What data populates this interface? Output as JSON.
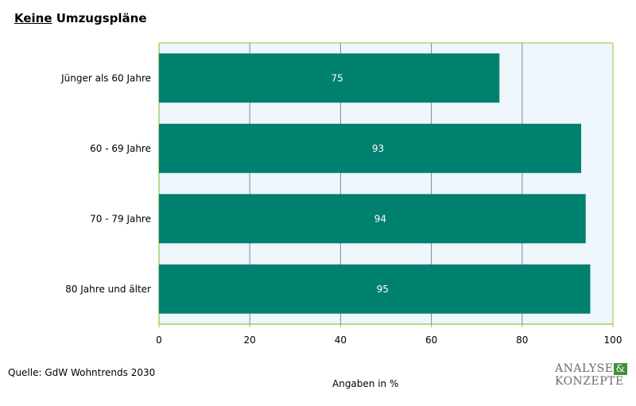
{
  "title": {
    "underlined": "Keine",
    "rest": " Umzugspläne"
  },
  "source": "Quelle: GdW Wohntrends 2030",
  "unit_label": "Angaben in %",
  "logo": {
    "line1": "ANALYSE",
    "amp": "&",
    "line2": "KONZEPTE"
  },
  "colors": {
    "bar": "#00806f",
    "plot_bg": "#eef5fb",
    "grid": "#7f8a94",
    "axis": "#8dc63f",
    "label": "#ffffff"
  },
  "chart_data": {
    "type": "bar",
    "orientation": "horizontal",
    "categories": [
      "Jünger als 60 Jahre",
      "60 - 69 Jahre",
      "70 - 79 Jahre",
      "80 Jahre und älter"
    ],
    "values": [
      75,
      93,
      94,
      95
    ],
    "xlim": [
      0,
      100
    ],
    "xticks": [
      0,
      20,
      40,
      60,
      80,
      100
    ],
    "grid": true
  }
}
